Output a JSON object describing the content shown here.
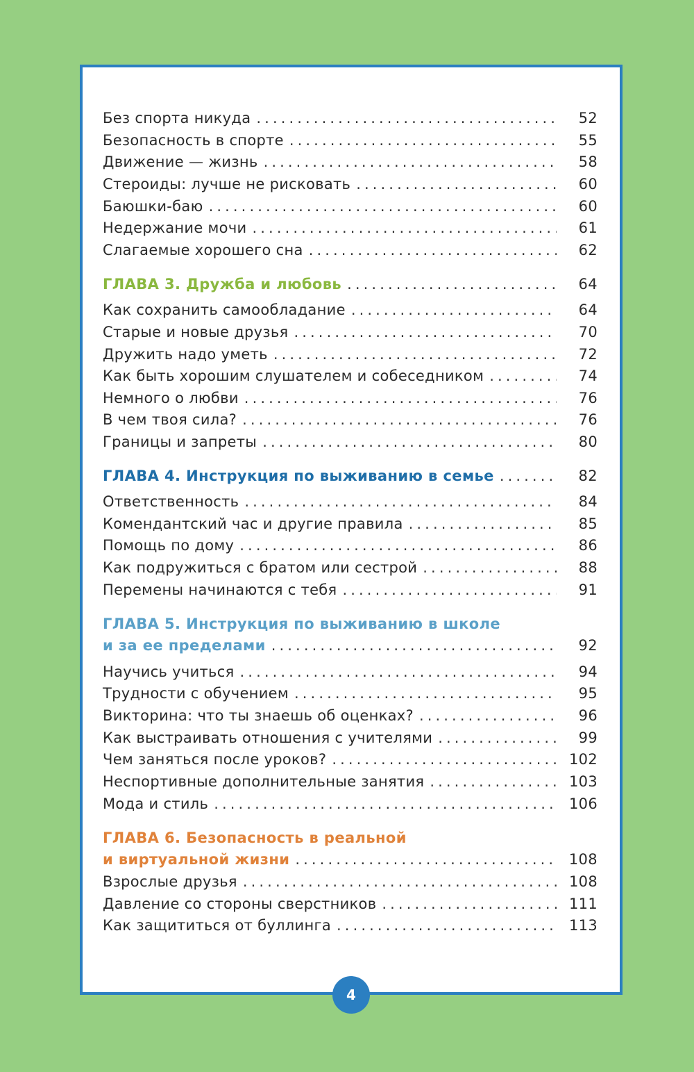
{
  "colors": {
    "background": "#96cf82",
    "frame": "#2b7fc1",
    "chapter3": "#8ab83f",
    "chapter4": "#1f6ea8",
    "chapter5": "#5aa0c8",
    "chapter6": "#e0823a"
  },
  "toc": [
    {
      "title": "Без спорта никуда",
      "page": "52"
    },
    {
      "title": "Безопасность в спорте",
      "page": "55"
    },
    {
      "title": "Движение — жизнь",
      "page": "58"
    },
    {
      "title": "Стероиды: лучше не рисковать",
      "page": "60"
    },
    {
      "title": "Баюшки-баю",
      "page": "60"
    },
    {
      "title": "Недержание мочи",
      "page": "61"
    },
    {
      "title": "Слагаемые хорошего сна",
      "page": "62"
    },
    {
      "title": "ГЛАВА 3. Дружба и любовь",
      "page": "64",
      "chapter": "chapter3"
    },
    {
      "title": "Как сохранить самообладание",
      "page": "64"
    },
    {
      "title": "Старые и новые друзья",
      "page": "70"
    },
    {
      "title": "Дружить надо уметь",
      "page": "72"
    },
    {
      "title": "Как быть хорошим слушателем и собеседником",
      "page": "74"
    },
    {
      "title": "Немного о любви",
      "page": "76"
    },
    {
      "title": "В чем твоя сила?",
      "page": "76"
    },
    {
      "title": "Границы и запреты",
      "page": "80"
    },
    {
      "title": "ГЛАВА 4. Инструкция по выживанию в семье",
      "page": "82",
      "chapter": "chapter4"
    },
    {
      "title": "Ответственность",
      "page": "84"
    },
    {
      "title": "Комендантский час и другие правила",
      "page": "85"
    },
    {
      "title": "Помощь по дому",
      "page": "86"
    },
    {
      "title": "Как подружиться с братом или сестрой",
      "page": "88"
    },
    {
      "title": "Перемены начинаются с тебя",
      "page": "91"
    },
    {
      "title": "ГЛАВА 5. Инструкция по выживанию в школе",
      "chapter": "chapter5"
    },
    {
      "title": "и за ее пределами",
      "page": "92",
      "chapter": "chapter5"
    },
    {
      "title": "Научись учиться",
      "page": "94"
    },
    {
      "title": "Трудности с обучением",
      "page": "95"
    },
    {
      "title": "Викторина: что ты знаешь об оценках?",
      "page": "96"
    },
    {
      "title": "Как выстраивать отношения с учителями",
      "page": "99"
    },
    {
      "title": "Чем заняться после уроков?",
      "page": "102"
    },
    {
      "title": "Неспортивные дополнительные занятия",
      "page": "103"
    },
    {
      "title": "Мода и стиль",
      "page": "106"
    },
    {
      "title": "ГЛАВА 6. Безопасность в реальной",
      "chapter": "chapter6"
    },
    {
      "title": "и виртуальной жизни",
      "page": "108",
      "chapter": "chapter6"
    },
    {
      "title": "Взрослые друзья",
      "page": "108"
    },
    {
      "title": "Давление со стороны сверстников",
      "page": "111"
    },
    {
      "title": "Как защититься от буллинга",
      "page": "113"
    }
  ],
  "page_number": "4"
}
